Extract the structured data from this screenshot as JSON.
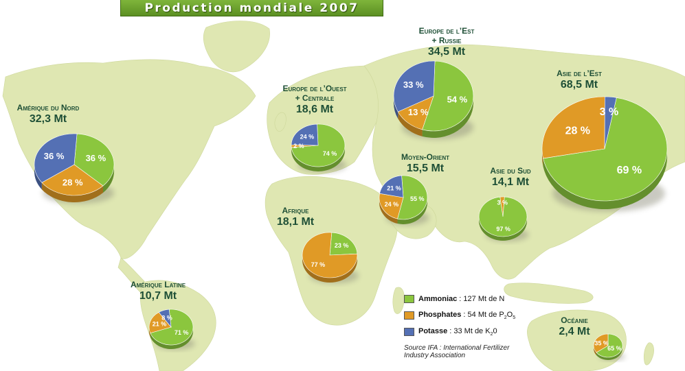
{
  "title": "Production mondiale 2007",
  "colors": {
    "ammoniac": "#8bc63e",
    "phosphates": "#e09a26",
    "potasse": "#5470b4",
    "land": "#dfe7b2",
    "ocean": "#ffffff",
    "label": "#1e4f36"
  },
  "regions": [
    {
      "name": "Amérique du Nord",
      "name_lines": [
        "Amérique du Nord"
      ],
      "total": "32,3 Mt",
      "shares": {
        "ammoniac": {
          "value": 36,
          "label": "36 %"
        },
        "phosphates": {
          "value": 28,
          "label": "28 %"
        },
        "potasse": {
          "value": 36,
          "label": "36 %"
        }
      }
    },
    {
      "name": "Amérique Latine",
      "name_lines": [
        "Amérique Latine"
      ],
      "total": "10,7 Mt",
      "shares": {
        "ammoniac": {
          "value": 71,
          "label": "71 %"
        },
        "phosphates": {
          "value": 21,
          "label": "21 %"
        },
        "potasse": {
          "value": 8,
          "label": "8 %"
        }
      }
    },
    {
      "name": "Europe de l’Ouest + Centrale",
      "name_lines": [
        "Europe de l’Ouest",
        "+ Centrale"
      ],
      "total": "18,6 Mt",
      "shares": {
        "ammoniac": {
          "value": 74,
          "label": "74 %"
        },
        "phosphates": {
          "value": 2,
          "label": "2 %"
        },
        "potasse": {
          "value": 24,
          "label": "24 %"
        }
      }
    },
    {
      "name": "Europe de l’Est + Russie",
      "name_lines": [
        "Europe de l’Est",
        "+ Russie"
      ],
      "total": "34,5 Mt",
      "shares": {
        "ammoniac": {
          "value": 54,
          "label": "54 %"
        },
        "phosphates": {
          "value": 13,
          "label": "13 %"
        },
        "potasse": {
          "value": 33,
          "label": "33 %"
        }
      }
    },
    {
      "name": "Moyen-Orient",
      "name_lines": [
        "Moyen-Orient"
      ],
      "total": "15,5 Mt",
      "shares": {
        "ammoniac": {
          "value": 55,
          "label": "55 %"
        },
        "phosphates": {
          "value": 24,
          "label": "24 %"
        },
        "potasse": {
          "value": 21,
          "label": "21 %"
        }
      }
    },
    {
      "name": "Afrique",
      "name_lines": [
        "Afrique"
      ],
      "total": "18,1 Mt",
      "shares": {
        "ammoniac": {
          "value": 23,
          "label": "23 %"
        },
        "phosphates": {
          "value": 77,
          "label": "77 %"
        },
        "potasse": {
          "value": 0,
          "label": ""
        }
      }
    },
    {
      "name": "Asie du Sud",
      "name_lines": [
        "Asie du Sud"
      ],
      "total": "14,1 Mt",
      "shares": {
        "ammoniac": {
          "value": 97,
          "label": "97 %"
        },
        "phosphates": {
          "value": 3,
          "label": "3 %"
        },
        "potasse": {
          "value": 0,
          "label": ""
        }
      }
    },
    {
      "name": "Asie de l’Est",
      "name_lines": [
        "Asie de l’Est"
      ],
      "total": "68,5 Mt",
      "shares": {
        "ammoniac": {
          "value": 69,
          "label": "69 %"
        },
        "phosphates": {
          "value": 28,
          "label": "28 %"
        },
        "potasse": {
          "value": 3,
          "label": "3 %"
        }
      }
    },
    {
      "name": "Océanie",
      "name_lines": [
        "Océanie"
      ],
      "total": "2,4 Mt",
      "shares": {
        "ammoniac": {
          "value": 65,
          "label": "65 %"
        },
        "phosphates": {
          "value": 35,
          "label": "35 %"
        },
        "potasse": {
          "value": 0,
          "label": ""
        }
      }
    }
  ],
  "legend": [
    {
      "key": "ammoniac",
      "name": "Ammoniac",
      "detail": " : 127 Mt de N",
      "sub": "",
      "after": ""
    },
    {
      "key": "phosphates",
      "name": "Phosphates",
      "detail": " : 54 Mt de P",
      "sub": "2",
      "after": "O",
      "sub2": "5"
    },
    {
      "key": "potasse",
      "name": "Potasse",
      "detail": " : 33 Mt de K",
      "sub": "2",
      "after": "0",
      "sub2": ""
    }
  ],
  "source": {
    "line1": "Source IFA : International Fertilizer",
    "line2": "Industry Association"
  }
}
